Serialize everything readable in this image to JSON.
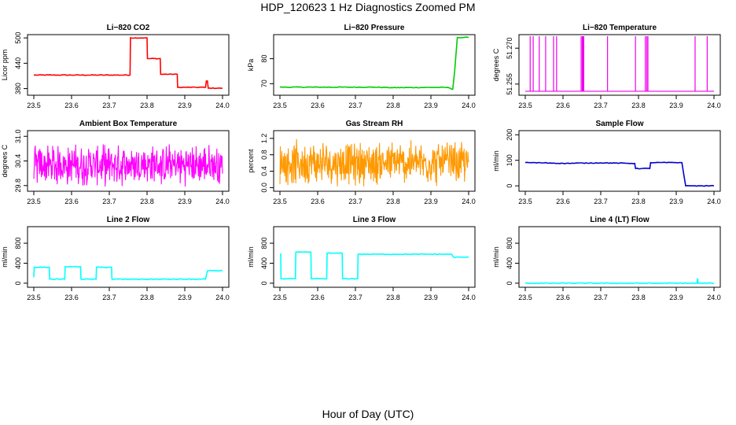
{
  "title": "HDP_120623  1 Hz Diagnostics Zoomed PM",
  "xlabel": "Hour of Day (UTC)",
  "chart_data": [
    {
      "type": "line",
      "title": "Li−820 CO2",
      "ylabel": "Licor ppm",
      "color": "#ff0000",
      "xlim": [
        23.5,
        24.0
      ],
      "ylim": [
        368,
        504
      ],
      "xticks": [
        "23.5",
        "23.6",
        "23.7",
        "23.8",
        "23.9",
        "24.0"
      ],
      "yticks": [
        "380",
        "440",
        "500"
      ],
      "x": [
        23.5,
        23.755,
        23.756,
        23.8,
        23.801,
        23.835,
        23.836,
        23.88,
        23.881,
        23.955,
        23.957,
        23.96,
        23.962,
        24.0
      ],
      "y": [
        412,
        412,
        500,
        500,
        451,
        451,
        414,
        414,
        383,
        383,
        398,
        398,
        381,
        381
      ]
    },
    {
      "type": "line",
      "title": "Li−820 Pressure",
      "ylabel": "kPa",
      "color": "#00cc00",
      "xlim": [
        23.5,
        24.0
      ],
      "ylim": [
        66,
        89
      ],
      "xticks": [
        "23.5",
        "23.6",
        "23.7",
        "23.8",
        "23.9",
        "24.0"
      ],
      "yticks": [
        "70",
        "80"
      ],
      "x": [
        23.5,
        23.75,
        23.8,
        23.9,
        23.945,
        23.955,
        23.958,
        23.963,
        23.97,
        24.0
      ],
      "y": [
        68.6,
        68.6,
        68.4,
        68.5,
        68.5,
        67.8,
        67.8,
        75,
        88.5,
        88.5
      ]
    },
    {
      "type": "line",
      "title": "Li−820 Temperature",
      "ylabel": "degrees C",
      "color": "#ee00ee",
      "xlim": [
        23.5,
        24.0
      ],
      "ylim": [
        51.251,
        51.275
      ],
      "xticks": [
        "23.5",
        "23.6",
        "23.7",
        "23.8",
        "23.9",
        "24.0"
      ],
      "yticks": [
        "51.255",
        "51.270"
      ],
      "baseline": 51.252,
      "spikes": [
        23.513,
        23.521,
        23.537,
        23.554,
        23.575,
        23.583,
        23.648,
        23.651,
        23.653,
        23.655,
        23.718,
        23.792,
        23.818,
        23.822,
        23.825,
        23.95,
        23.982
      ]
    },
    {
      "type": "line",
      "title": "Ambient Box Temperature",
      "ylabel": "degrees C",
      "color": "#ff00ff",
      "xlim": [
        23.5,
        24.0
      ],
      "ylim": [
        29.7,
        31.1
      ],
      "xticks": [
        "23.5",
        "23.6",
        "23.7",
        "23.8",
        "23.9",
        "24.0"
      ],
      "yticks": [
        "29.8",
        "30.4",
        "31.0"
      ],
      "noise": {
        "low": 29.8,
        "high": 30.9,
        "center": 30.3
      }
    },
    {
      "type": "line",
      "title": "Gas Stream RH",
      "ylabel": "percent",
      "color": "#ff9900",
      "xlim": [
        23.5,
        24.0
      ],
      "ylim": [
        -0.05,
        1.35
      ],
      "xticks": [
        "23.5",
        "23.6",
        "23.7",
        "23.8",
        "23.9",
        "24.0"
      ],
      "yticks": [
        "0.0",
        "0.4",
        "0.8",
        "1.2"
      ],
      "noise": {
        "low": 0.05,
        "high": 1.25,
        "center": 0.6
      }
    },
    {
      "type": "line",
      "title": "Sample Flow",
      "ylabel": "ml/min",
      "color": "#0000cc",
      "xlim": [
        23.5,
        24.0
      ],
      "ylim": [
        -15,
        210
      ],
      "xticks": [
        "23.5",
        "23.6",
        "23.7",
        "23.8",
        "23.9",
        "24.0"
      ],
      "yticks": [
        "0",
        "100",
        "200"
      ],
      "x": [
        23.5,
        23.55,
        23.6,
        23.7,
        23.79,
        23.792,
        23.83,
        23.832,
        23.915,
        23.925,
        23.95,
        24.0
      ],
      "y": [
        91,
        90,
        88,
        90,
        88,
        68,
        68,
        91,
        91,
        0,
        0,
        0
      ]
    },
    {
      "type": "line",
      "title": "Line 2 Flow",
      "ylabel": "ml/min",
      "color": "#00ffff",
      "xlim": [
        23.5,
        24.0
      ],
      "ylim": [
        -50,
        1100
      ],
      "xticks": [
        "23.5",
        "23.6",
        "23.7",
        "23.8",
        "23.9",
        "24.0"
      ],
      "yticks": [
        "0",
        "400",
        "800"
      ],
      "x": [
        23.5,
        23.501,
        23.541,
        23.542,
        23.582,
        23.583,
        23.624,
        23.625,
        23.665,
        23.666,
        23.706,
        23.707,
        23.955,
        23.96,
        24.0
      ],
      "y": [
        120,
        320,
        320,
        80,
        80,
        330,
        330,
        80,
        80,
        320,
        320,
        80,
        80,
        250,
        250
      ]
    },
    {
      "type": "line",
      "title": "Line 3 Flow",
      "ylabel": "ml/min",
      "color": "#00ffff",
      "xlim": [
        23.5,
        24.0
      ],
      "ylim": [
        -50,
        1100
      ],
      "xticks": [
        "23.5",
        "23.6",
        "23.7",
        "23.8",
        "23.9",
        "24.0"
      ],
      "yticks": [
        "0",
        "400",
        "800"
      ],
      "x": [
        23.5,
        23.502,
        23.503,
        23.541,
        23.542,
        23.582,
        23.583,
        23.624,
        23.625,
        23.665,
        23.666,
        23.706,
        23.707,
        23.955,
        23.96,
        24.0
      ],
      "y": [
        580,
        580,
        90,
        90,
        620,
        620,
        90,
        90,
        600,
        600,
        90,
        90,
        580,
        580,
        520,
        520
      ]
    },
    {
      "type": "line",
      "title": "Line 4 (LT) Flow",
      "ylabel": "ml/min",
      "color": "#00ffff",
      "xlim": [
        23.5,
        24.0
      ],
      "ylim": [
        -50,
        1100
      ],
      "xticks": [
        "23.5",
        "23.6",
        "23.7",
        "23.8",
        "23.9",
        "24.0"
      ],
      "yticks": [
        "0",
        "400",
        "800"
      ],
      "x": [
        23.5,
        23.955,
        23.956,
        23.957,
        23.958,
        24.0
      ],
      "y": [
        0,
        0,
        80,
        80,
        0,
        0
      ]
    }
  ]
}
